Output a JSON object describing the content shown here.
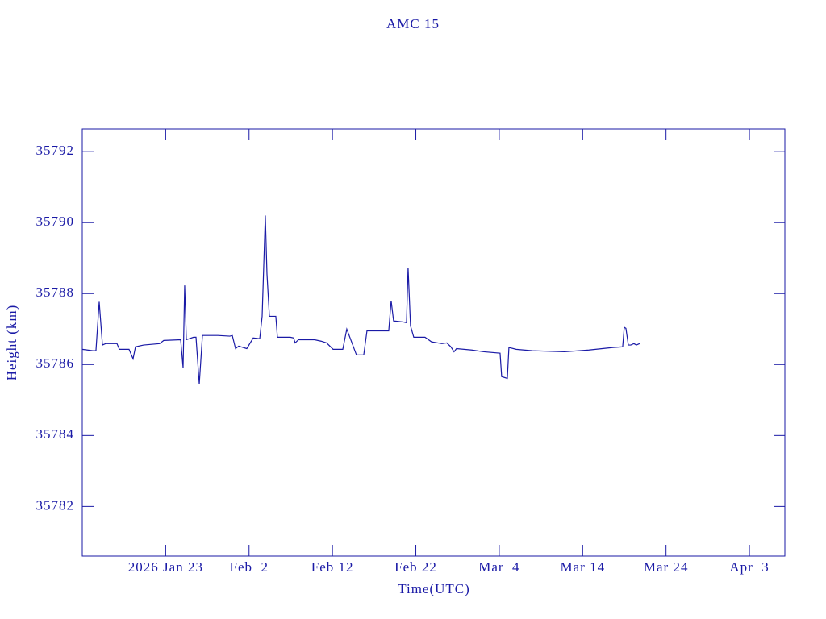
{
  "chart_data": {
    "type": "line",
    "title": "AMC 15",
    "x_label": "Time(UTC)",
    "y_label": "Height (km)",
    "color": "#1a1aa6",
    "xlim": [
      13,
      97.25
    ],
    "ylim": [
      35780.6,
      35792.64
    ],
    "xticks": [
      {
        "value": 23,
        "label": "2026 Jan 23"
      },
      {
        "value": 33,
        "label": "Feb  2"
      },
      {
        "value": 43,
        "label": "Feb 12"
      },
      {
        "value": 53,
        "label": "Feb 22"
      },
      {
        "value": 63,
        "label": "Mar  4"
      },
      {
        "value": 73,
        "label": "Mar 14"
      },
      {
        "value": 83,
        "label": "Mar 24"
      },
      {
        "value": 93,
        "label": "Apr  3"
      }
    ],
    "yticks": [
      35782,
      35784,
      35786,
      35788,
      35790,
      35792
    ],
    "x": [
      13.0,
      14.26,
      14.64,
      15.03,
      15.42,
      15.8,
      17.16,
      17.45,
      18.61,
      19.09,
      19.38,
      20.35,
      22.28,
      22.77,
      24.8,
      25.09,
      25.28,
      25.48,
      26.35,
      26.64,
      27.03,
      27.41,
      29.25,
      30.7,
      30.99,
      31.38,
      31.76,
      32.73,
      33.5,
      34.28,
      34.57,
      34.95,
      35.15,
      35.44,
      36.21,
      36.4,
      37.95,
      38.34,
      38.53,
      38.92,
      40.85,
      41.63,
      42.3,
      43.08,
      44.24,
      44.72,
      45.88,
      46.75,
      47.14,
      49.17,
      49.75,
      50.04,
      50.33,
      51.49,
      51.88,
      52.07,
      52.36,
      52.75,
      54.1,
      54.88,
      56.13,
      56.71,
      57.2,
      57.58,
      57.87,
      59.71,
      61.16,
      63.1,
      63.29,
      63.97,
      64.16,
      65.03,
      66.96,
      70.83,
      73.74,
      76.64,
      77.8,
      77.99,
      78.19,
      78.48,
      78.77,
      79.15,
      79.44,
      79.83
    ],
    "values": [
      35786.43,
      35786.39,
      35786.39,
      35787.77,
      35786.55,
      35786.59,
      35786.59,
      35786.43,
      35786.43,
      35786.16,
      35786.5,
      35786.55,
      35786.59,
      35786.68,
      35786.7,
      35785.91,
      35788.23,
      35786.7,
      35786.77,
      35786.77,
      35785.45,
      35786.82,
      35786.82,
      35786.8,
      35786.82,
      35786.45,
      35786.52,
      35786.45,
      35786.75,
      35786.73,
      35787.36,
      35790.2,
      35788.55,
      35787.36,
      35787.36,
      35786.77,
      35786.77,
      35786.75,
      35786.61,
      35786.7,
      35786.7,
      35786.66,
      35786.61,
      35786.43,
      35786.43,
      35787.0,
      35786.27,
      35786.27,
      35786.95,
      35786.95,
      35786.95,
      35787.8,
      35787.23,
      35787.2,
      35787.18,
      35788.73,
      35787.09,
      35786.77,
      35786.77,
      35786.64,
      35786.59,
      35786.61,
      35786.5,
      35786.36,
      35786.45,
      35786.41,
      35786.36,
      35786.32,
      35785.66,
      35785.61,
      35786.48,
      35786.43,
      35786.39,
      35786.36,
      35786.41,
      35786.48,
      35786.5,
      35787.05,
      35787.02,
      35786.55,
      35786.55,
      35786.59,
      35786.55,
      35786.59
    ]
  }
}
